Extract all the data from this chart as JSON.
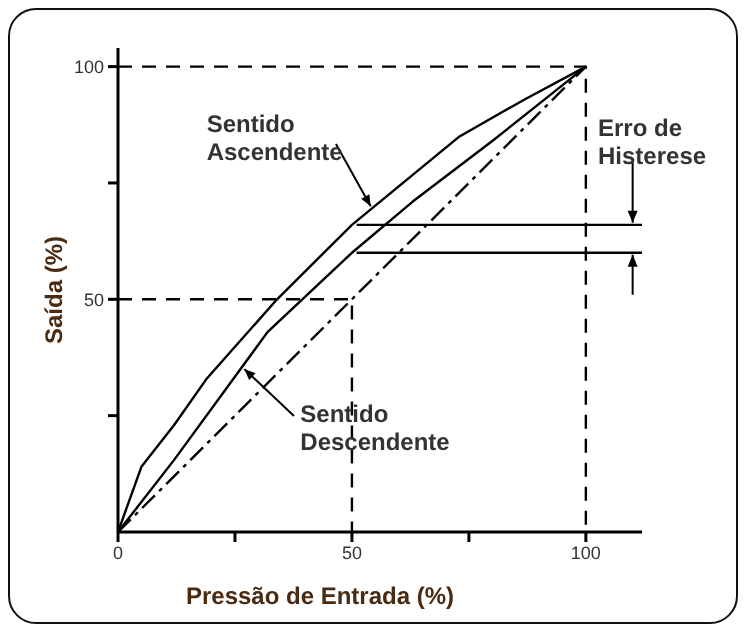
{
  "chart_data": {
    "type": "line",
    "xlabel": "Pressão de Entrada (%)",
    "ylabel": "Saída (%)",
    "xlim": [
      0,
      112
    ],
    "ylim": [
      0,
      104
    ],
    "xticks": [
      0,
      {
        "value": 25,
        "label": null
      },
      50,
      {
        "value": 75,
        "label": null
      },
      100
    ],
    "yticks": [
      {
        "value": 25,
        "label": null
      },
      50,
      {
        "value": 75,
        "label": null
      },
      100
    ],
    "grid": false,
    "marker": "none",
    "series": [
      {
        "color": "#000000",
        "line_style": "solid",
        "x": [
          0,
          5,
          12,
          19,
          34,
          50,
          73,
          87,
          100
        ],
        "values": [
          0,
          14,
          23,
          33,
          50,
          66,
          85,
          93,
          100
        ]
      },
      {
        "color": "#000000",
        "line_style": "solid",
        "x": [
          0,
          12,
          32,
          50,
          63,
          80,
          100
        ],
        "values": [
          0,
          15.5,
          43,
          60,
          71,
          84,
          100
        ]
      },
      {
        "color": "#000000",
        "line_style": "dashdot",
        "x": [
          0,
          100
        ],
        "values": [
          0,
          100
        ]
      },
      {
        "color": "#000000",
        "line_style": "dashed",
        "x": [
          0,
          100,
          100
        ],
        "values": [
          100,
          100,
          0
        ]
      },
      {
        "color": "#000000",
        "line_style": "dashed",
        "x": [
          0,
          50,
          50
        ],
        "values": [
          50,
          50,
          0
        ]
      },
      {
        "color": "#000000",
        "line_style": "solid",
        "x": [
          51,
          112
        ],
        "values": [
          66,
          66
        ]
      },
      {
        "color": "#000000",
        "line_style": "solid",
        "x": [
          51,
          112
        ],
        "values": [
          60,
          60
        ]
      }
    ],
    "annotations": [
      {
        "text": "Sentido Ascendente",
        "x": 54,
        "y": 70
      },
      {
        "text": "Sentido Descendente",
        "x": 27,
        "y": 35
      },
      {
        "text": "Erro de Histerese",
        "x": 110,
        "y": 66
      }
    ]
  }
}
